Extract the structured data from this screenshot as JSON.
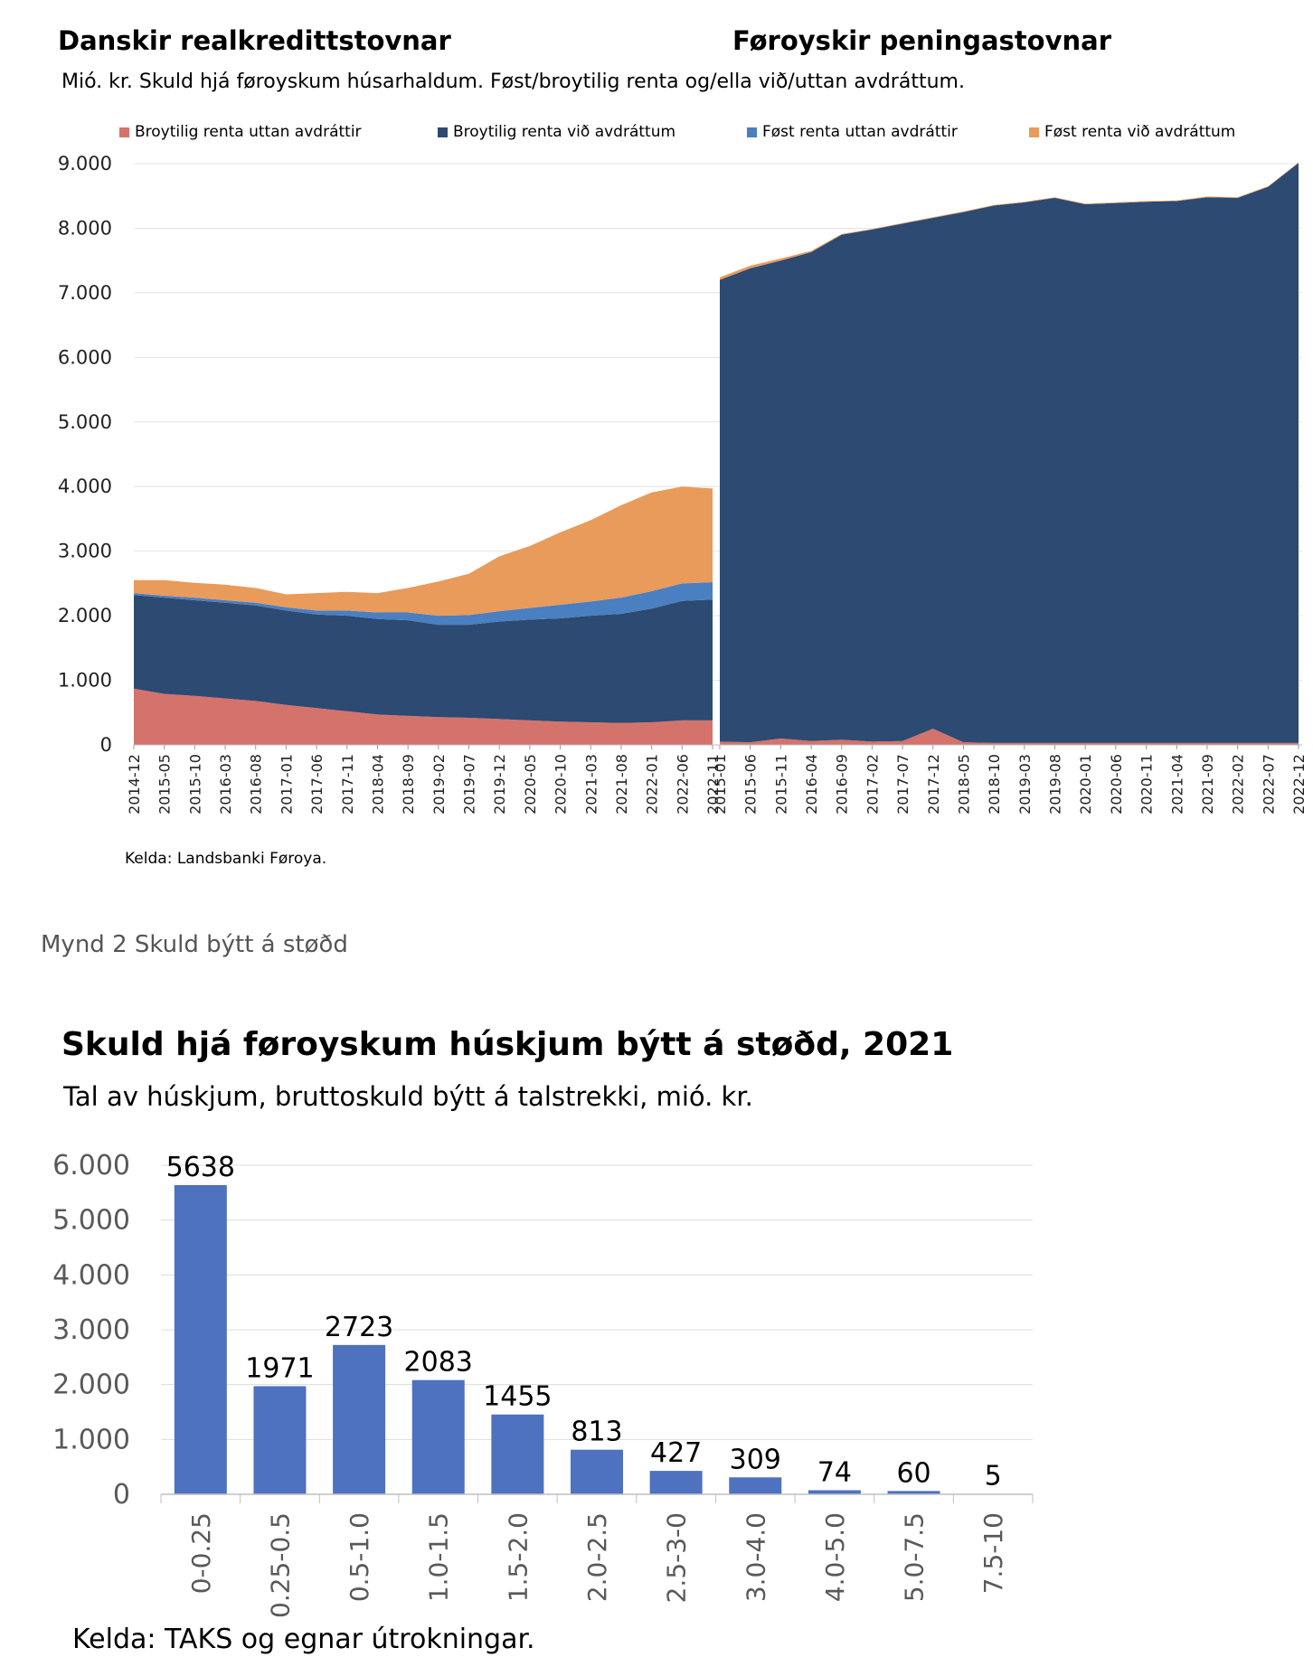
{
  "figure1": {
    "title_left": "Danskir realkredittstovnar",
    "title_right": "Føroyskir peningastovnar",
    "subtitle": "Mió. kr. Skuld hjá føroyskum húsarhaldum. Føst/broytilig renta og/ella við/uttan avdráttum.",
    "source": "Kelda: Landsbanki Føroya."
  },
  "caption": "Mynd 2 Skuld býtt á støðd",
  "figure2": {
    "title": "Skuld hjá føroyskum húskjum býtt á støðd, 2021",
    "subtitle": "Tal av húskjum, bruttoskuld býtt á talstrekki, mió. kr.",
    "source": "Kelda: TAKS og egnar útrokningar."
  },
  "chart_data": [
    {
      "type": "area",
      "stacked": true,
      "title": "Danskir realkredittstovnar / Føroyskir peningastovnar",
      "ylim": [
        0,
        9000
      ],
      "yticks": [
        "0",
        "1.000",
        "2.000",
        "3.000",
        "4.000",
        "5.000",
        "6.000",
        "7.000",
        "8.000",
        "9.000"
      ],
      "legend_position": "top",
      "colors": [
        "#d4736b",
        "#2c4a72",
        "#4a7fc1",
        "#e89b5a"
      ],
      "legend": [
        "Broytilig renta uttan avdráttir",
        "Broytilig renta við avdráttum",
        "Føst renta uttan avdráttir",
        "Føst renta við avdráttum"
      ],
      "panels": [
        {
          "name": "Danskir realkredittstovnar",
          "x": [
            "2014-12",
            "2015-05",
            "2015-10",
            "2016-03",
            "2016-08",
            "2017-01",
            "2017-06",
            "2017-11",
            "2018-04",
            "2018-09",
            "2019-02",
            "2019-07",
            "2019-12",
            "2020-05",
            "2020-10",
            "2021-03",
            "2021-08",
            "2022-01",
            "2022-06",
            "2022-11"
          ],
          "series": [
            {
              "name": "Broytilig renta uttan avdráttir",
              "values": [
                870,
                790,
                760,
                720,
                680,
                620,
                570,
                520,
                470,
                450,
                430,
                420,
                400,
                380,
                360,
                350,
                340,
                350,
                380,
                380
              ]
            },
            {
              "name": "Broytilig renta við avdráttum",
              "values": [
                1450,
                1490,
                1480,
                1480,
                1480,
                1460,
                1450,
                1480,
                1480,
                1480,
                1430,
                1440,
                1510,
                1560,
                1600,
                1650,
                1690,
                1760,
                1850,
                1870
              ]
            },
            {
              "name": "Føst renta uttan avdráttir",
              "values": [
                30,
                30,
                40,
                40,
                40,
                50,
                60,
                80,
                100,
                120,
                140,
                150,
                160,
                180,
                210,
                220,
                250,
                270,
                270,
                270
              ]
            },
            {
              "name": "Føst renta við avdráttum",
              "values": [
                200,
                240,
                230,
                240,
                230,
                200,
                270,
                290,
                300,
                380,
                530,
                640,
                850,
                960,
                1120,
                1260,
                1430,
                1530,
                1500,
                1450
              ]
            }
          ]
        },
        {
          "name": "Føroyskir peningastovnar",
          "x": [
            "2015-01",
            "2015-06",
            "2015-11",
            "2016-04",
            "2016-09",
            "2017-02",
            "2017-07",
            "2017-12",
            "2018-05",
            "2018-10",
            "2019-03",
            "2019-08",
            "2020-01",
            "2020-06",
            "2020-11",
            "2021-04",
            "2021-09",
            "2022-02",
            "2022-07",
            "2022-12"
          ],
          "series": [
            {
              "name": "Broytilig renta uttan avdráttir",
              "values": [
                50,
                40,
                100,
                60,
                80,
                50,
                60,
                250,
                40,
                30,
                30,
                30,
                30,
                30,
                30,
                30,
                30,
                30,
                30,
                30
              ]
            },
            {
              "name": "Broytilig renta við avdráttum",
              "values": [
                7150,
                7340,
                7400,
                7570,
                7820,
                7930,
                8010,
                7910,
                8210,
                8320,
                8370,
                8440,
                8340,
                8360,
                8380,
                8390,
                8450,
                8440,
                8610,
                8980
              ]
            },
            {
              "name": "Føst renta uttan avdráttir",
              "values": [
                0,
                0,
                0,
                0,
                0,
                0,
                0,
                0,
                0,
                0,
                0,
                0,
                0,
                0,
                0,
                0,
                0,
                0,
                0,
                0
              ]
            },
            {
              "name": "Føst renta við avdráttum",
              "values": [
                40,
                40,
                30,
                20,
                10,
                10,
                10,
                10,
                10,
                10,
                10,
                10,
                10,
                10,
                10,
                10,
                10,
                10,
                10,
                10
              ]
            }
          ]
        }
      ]
    },
    {
      "type": "bar",
      "title": "Skuld hjá føroyskum húskjum býtt á støðd, 2021",
      "color": "#4e71c0",
      "categories": [
        "0-0.25",
        "0.25-0.5",
        "0.5-1.0",
        "1.0-1.5",
        "1.5-2.0",
        "2.0-2.5",
        "2.5-3-0",
        "3.0-4.0",
        "4.0-5.0",
        "5.0-7.5",
        "7.5-10"
      ],
      "values": [
        5638,
        1971,
        2723,
        2083,
        1455,
        813,
        427,
        309,
        74,
        60,
        5
      ],
      "ylim": [
        0,
        6000
      ],
      "yticks": [
        "0",
        "1.000",
        "2.000",
        "3.000",
        "4.000",
        "5.000",
        "6.000"
      ]
    }
  ]
}
